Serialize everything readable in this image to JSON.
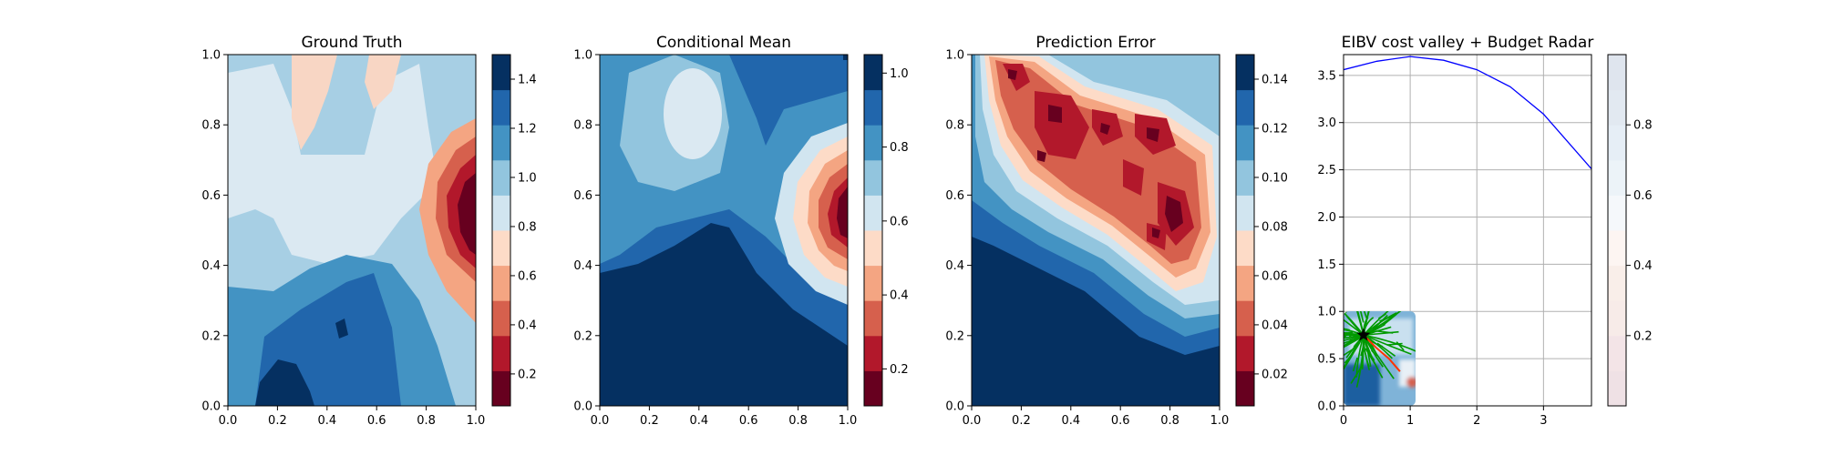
{
  "chart_data": [
    {
      "type": "heatmap",
      "title": "Ground Truth",
      "xlabel": "",
      "ylabel": "",
      "xlim": [
        0,
        1
      ],
      "ylim": [
        0,
        1
      ],
      "xticks": [
        "0.0",
        "0.2",
        "0.4",
        "0.6",
        "0.8",
        "1.0"
      ],
      "yticks": [
        "0.0",
        "0.2",
        "0.4",
        "0.6",
        "0.8",
        "1.0"
      ],
      "colormap": "RdBu",
      "colorbar": {
        "range": [
          0.07,
          1.5
        ],
        "levels": 10,
        "ticks": [
          "0.2",
          "0.4",
          "0.6",
          "0.8",
          "1.0",
          "1.2",
          "1.4"
        ]
      },
      "grid": false
    },
    {
      "type": "heatmap",
      "title": "Conditional Mean",
      "xlabel": "",
      "ylabel": "",
      "xlim": [
        0,
        1
      ],
      "ylim": [
        0,
        1
      ],
      "xticks": [
        "0.0",
        "0.2",
        "0.4",
        "0.6",
        "0.8",
        "1.0"
      ],
      "yticks": [
        "0.0",
        "0.2",
        "0.4",
        "0.6",
        "0.8",
        "1.0"
      ],
      "colormap": "RdBu",
      "colorbar": {
        "range": [
          0.1,
          1.05
        ],
        "levels": 10,
        "ticks": [
          "0.2",
          "0.4",
          "0.6",
          "0.8",
          "1.0"
        ]
      },
      "grid": false
    },
    {
      "type": "heatmap",
      "title": "Prediction Error",
      "xlabel": "",
      "ylabel": "",
      "xlim": [
        0,
        1
      ],
      "ylim": [
        0,
        1
      ],
      "xticks": [
        "0.0",
        "0.2",
        "0.4",
        "0.6",
        "0.8",
        "1.0"
      ],
      "yticks": [
        "0.0",
        "0.2",
        "0.4",
        "0.6",
        "0.8",
        "1.0"
      ],
      "colormap": "RdBu",
      "colorbar": {
        "range": [
          0.007,
          0.15
        ],
        "levels": 10,
        "ticks": [
          "0.02",
          "0.04",
          "0.06",
          "0.08",
          "0.10",
          "0.12",
          "0.14"
        ]
      },
      "grid": false
    },
    {
      "type": "line",
      "title": "EIBV cost valley + Budget Radar",
      "xlabel": "",
      "ylabel": "",
      "xlim": [
        0,
        3.72
      ],
      "ylim": [
        0,
        3.72
      ],
      "xticks": [
        "0",
        "1",
        "2",
        "3"
      ],
      "yticks": [
        "0.0",
        "0.5",
        "1.0",
        "1.5",
        "2.0",
        "2.5",
        "3.0",
        "3.5"
      ],
      "grid": true,
      "series": [
        {
          "name": "",
          "color": "#0000ff",
          "shape": "budget ellipse",
          "x": [
            0.0,
            0.5,
            1.0,
            1.5,
            2.0,
            2.5,
            3.0,
            3.72
          ],
          "y": [
            3.56,
            3.65,
            3.7,
            3.66,
            3.56,
            3.38,
            3.09,
            2.51
          ]
        }
      ],
      "inset": {
        "extent": {
          "x": [
            0,
            1
          ],
          "y": [
            0,
            1
          ]
        },
        "start_marker": {
          "x": 0.3,
          "y": 0.75,
          "symbol": "star",
          "color": "#000000"
        },
        "tree_color": "#009900",
        "path_color": "#ff3300"
      },
      "colorbar": {
        "range": [
          0,
          1
        ],
        "levels": 10,
        "ticks": [
          "0.2",
          "0.4",
          "0.6",
          "0.8"
        ],
        "colormap": "RdBu-light"
      }
    }
  ]
}
